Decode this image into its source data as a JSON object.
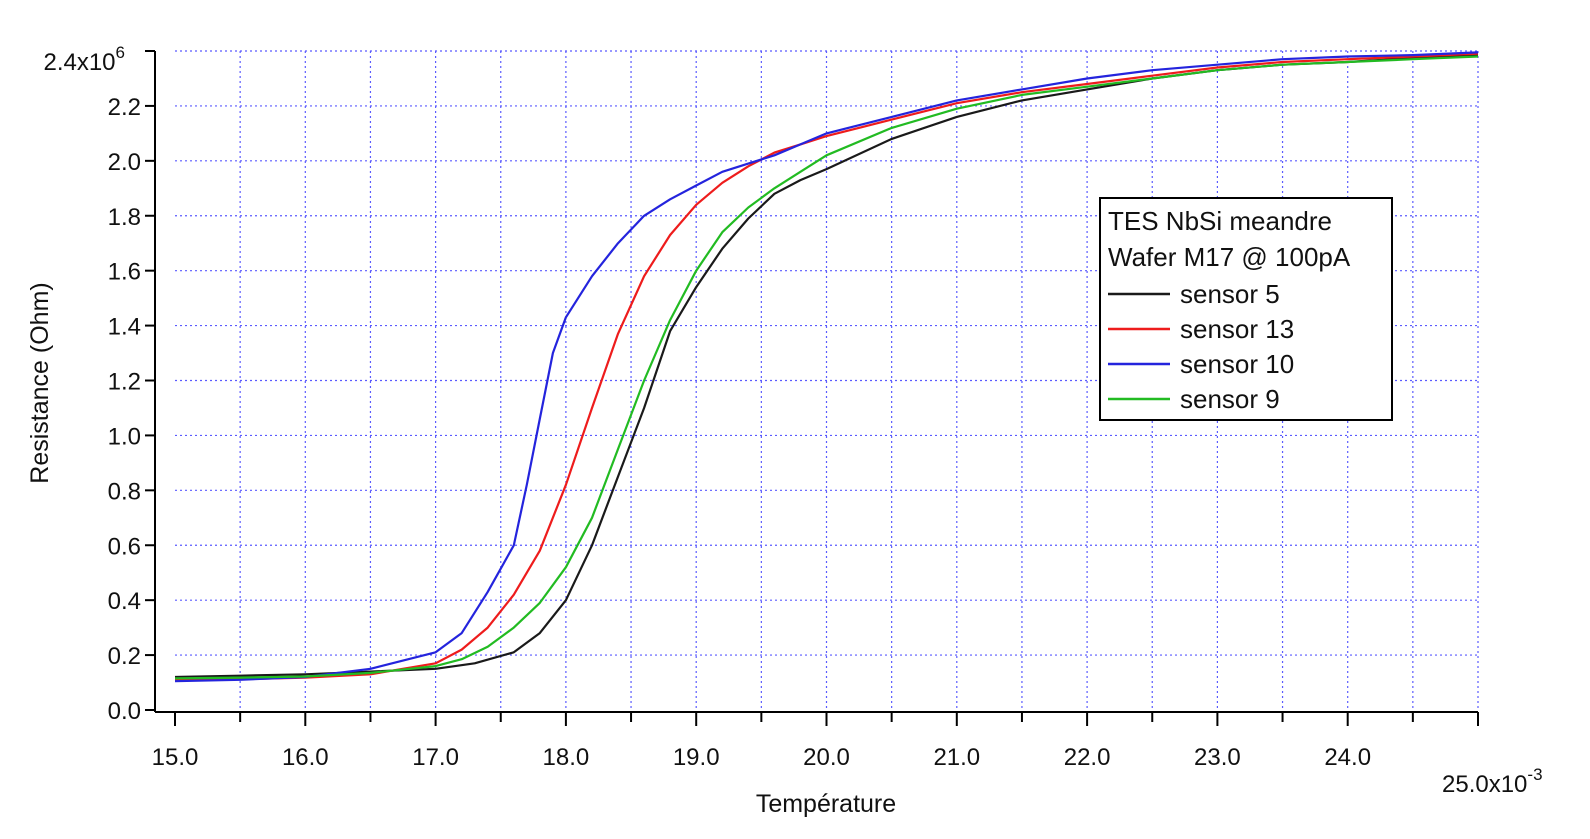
{
  "chart_data": {
    "type": "line",
    "xlabel": "Température",
    "ylabel": "Resistance (Ohm)",
    "x_scale_label": {
      "base": "25.0x10",
      "exp": "-3"
    },
    "y_scale_label": {
      "base": "2.4x10",
      "exp": "6"
    },
    "xlim": [
      0.015,
      0.025
    ],
    "ylim": [
      0,
      2400000
    ],
    "x_ticks": [
      {
        "value": 0.015,
        "label": "15.0"
      },
      {
        "value": 0.016,
        "label": "16.0"
      },
      {
        "value": 0.017,
        "label": "17.0"
      },
      {
        "value": 0.018,
        "label": "18.0"
      },
      {
        "value": 0.019,
        "label": "19.0"
      },
      {
        "value": 0.02,
        "label": "20.0"
      },
      {
        "value": 0.021,
        "label": "21.0"
      },
      {
        "value": 0.022,
        "label": "22.0"
      },
      {
        "value": 0.023,
        "label": "23.0"
      },
      {
        "value": 0.024,
        "label": "24.0"
      }
    ],
    "y_ticks": [
      {
        "value": 0,
        "label": "0.0"
      },
      {
        "value": 200000,
        "label": "0.2"
      },
      {
        "value": 400000,
        "label": "0.4"
      },
      {
        "value": 600000,
        "label": "0.6"
      },
      {
        "value": 800000,
        "label": "0.8"
      },
      {
        "value": 1000000,
        "label": "1.0"
      },
      {
        "value": 1200000,
        "label": "1.2"
      },
      {
        "value": 1400000,
        "label": "1.4"
      },
      {
        "value": 1600000,
        "label": "1.6"
      },
      {
        "value": 1800000,
        "label": "1.8"
      },
      {
        "value": 2000000,
        "label": "2.0"
      },
      {
        "value": 2200000,
        "label": "2.2"
      }
    ],
    "grid": true,
    "grid_color": "#5b5bff",
    "legend": {
      "placement": "right",
      "title_lines": [
        "TES NbSi meandre",
        "Wafer M17 @ 100pA"
      ]
    },
    "series": [
      {
        "name": "sensor 5",
        "color": "#1a1a1a",
        "x": [
          0.015,
          0.0155,
          0.016,
          0.0165,
          0.017,
          0.0173,
          0.0176,
          0.0178,
          0.018,
          0.0182,
          0.0184,
          0.0186,
          0.0188,
          0.019,
          0.0192,
          0.0194,
          0.0196,
          0.0198,
          0.02,
          0.0205,
          0.021,
          0.0215,
          0.022,
          0.0225,
          0.023,
          0.0235,
          0.024,
          0.0245,
          0.025
        ],
        "y": [
          120000,
          125000,
          130000,
          140000,
          150000,
          170000,
          210000,
          280000,
          400000,
          600000,
          850000,
          1100000,
          1380000,
          1540000,
          1680000,
          1790000,
          1880000,
          1930000,
          1970000,
          2080000,
          2160000,
          2220000,
          2260000,
          2300000,
          2330000,
          2350000,
          2360000,
          2375000,
          2385000
        ]
      },
      {
        "name": "sensor 13",
        "color": "#ee1c1c",
        "x": [
          0.015,
          0.0155,
          0.016,
          0.0165,
          0.017,
          0.0172,
          0.0174,
          0.0176,
          0.0178,
          0.018,
          0.0182,
          0.0184,
          0.0186,
          0.0188,
          0.019,
          0.0192,
          0.0194,
          0.0196,
          0.0198,
          0.02,
          0.0205,
          0.021,
          0.0215,
          0.022,
          0.0225,
          0.023,
          0.0235,
          0.024,
          0.0245,
          0.025
        ],
        "y": [
          110000,
          112000,
          118000,
          130000,
          170000,
          220000,
          300000,
          420000,
          580000,
          820000,
          1100000,
          1370000,
          1580000,
          1730000,
          1840000,
          1920000,
          1980000,
          2030000,
          2060000,
          2090000,
          2150000,
          2210000,
          2250000,
          2280000,
          2310000,
          2340000,
          2360000,
          2370000,
          2380000,
          2390000
        ]
      },
      {
        "name": "sensor 10",
        "color": "#2424dd",
        "x": [
          0.015,
          0.0155,
          0.016,
          0.0165,
          0.017,
          0.0172,
          0.0174,
          0.0176,
          0.0177,
          0.0178,
          0.0179,
          0.018,
          0.0182,
          0.0184,
          0.0186,
          0.0188,
          0.019,
          0.0192,
          0.0194,
          0.0196,
          0.0198,
          0.02,
          0.0205,
          0.021,
          0.0215,
          0.022,
          0.0225,
          0.023,
          0.0235,
          0.024,
          0.0245,
          0.025
        ],
        "y": [
          105000,
          110000,
          120000,
          150000,
          210000,
          280000,
          430000,
          600000,
          820000,
          1060000,
          1300000,
          1430000,
          1580000,
          1700000,
          1800000,
          1860000,
          1910000,
          1960000,
          1990000,
          2020000,
          2060000,
          2100000,
          2160000,
          2220000,
          2260000,
          2300000,
          2330000,
          2350000,
          2370000,
          2380000,
          2385000,
          2395000
        ]
      },
      {
        "name": "sensor 9",
        "color": "#22bb22",
        "x": [
          0.015,
          0.0155,
          0.016,
          0.0165,
          0.017,
          0.0172,
          0.0174,
          0.0176,
          0.0178,
          0.018,
          0.0182,
          0.0184,
          0.0186,
          0.0188,
          0.019,
          0.0192,
          0.0194,
          0.0196,
          0.0198,
          0.02,
          0.0205,
          0.021,
          0.0215,
          0.022,
          0.0225,
          0.023,
          0.0235,
          0.024,
          0.0245,
          0.025
        ],
        "y": [
          115000,
          118000,
          122000,
          135000,
          160000,
          185000,
          230000,
          300000,
          390000,
          520000,
          700000,
          950000,
          1200000,
          1420000,
          1600000,
          1740000,
          1830000,
          1900000,
          1960000,
          2020000,
          2120000,
          2190000,
          2240000,
          2270000,
          2300000,
          2330000,
          2350000,
          2360000,
          2370000,
          2380000
        ]
      }
    ]
  }
}
